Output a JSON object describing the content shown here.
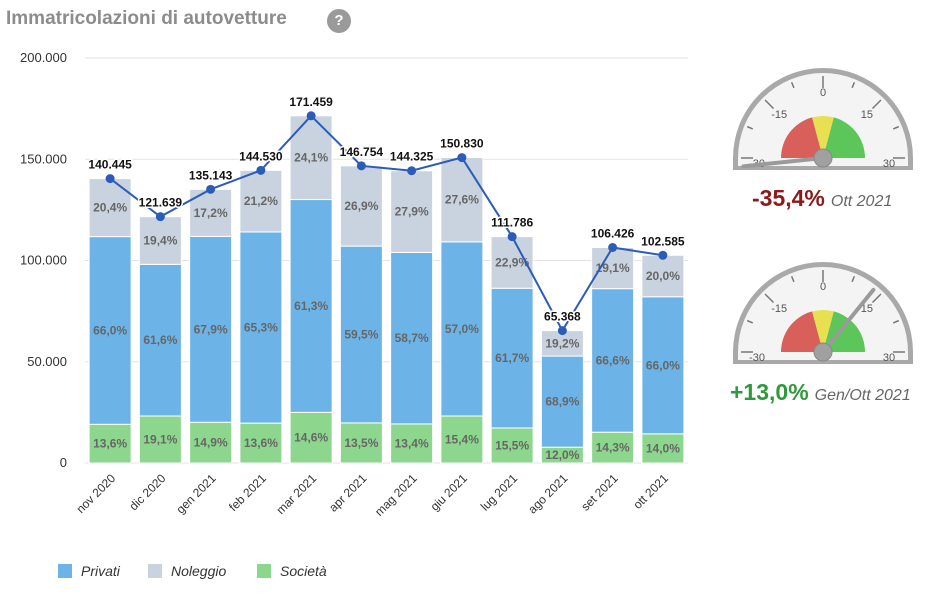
{
  "header": {
    "title": "Immatricolazioni di autovetture",
    "help_label": "?"
  },
  "chart_data": {
    "type": "bar",
    "stacked": true,
    "categories": [
      "nov 2020",
      "dic 2020",
      "gen 2021",
      "feb 2021",
      "mar 2021",
      "apr 2021",
      "mag 2021",
      "giu 2021",
      "lug 2021",
      "ago 2021",
      "set 2021",
      "ott 2021"
    ],
    "ylim": [
      0,
      200000
    ],
    "yticks": [
      "0",
      "50.000",
      "100.000",
      "150.000",
      "200.000"
    ],
    "ytick_values": [
      0,
      50000,
      100000,
      150000,
      200000
    ],
    "grid": true,
    "series": [
      {
        "name": "Società",
        "color": "#8dd68d",
        "values": [
          19100,
          23200,
          20100,
          19700,
          25000,
          19800,
          19300,
          23200,
          17300,
          7800,
          15200,
          14400
        ],
        "labels": [
          "13,6%",
          "19,1%",
          "14,9%",
          "13,6%",
          "14,6%",
          "13,5%",
          "13,4%",
          "15,4%",
          "15,5%",
          "12,0%",
          "14,3%",
          "14,0%"
        ]
      },
      {
        "name": "Privati",
        "color": "#6cb4e8",
        "values": [
          92700,
          74900,
          91800,
          94400,
          105100,
          87300,
          84700,
          86000,
          69000,
          45000,
          70900,
          67700
        ],
        "labels": [
          "66,0%",
          "61,6%",
          "67,9%",
          "65,3%",
          "61,3%",
          "59,5%",
          "58,7%",
          "57,0%",
          "61,7%",
          "68,9%",
          "66,6%",
          "66,0%"
        ]
      },
      {
        "name": "Noleggio",
        "color": "#c9d3df",
        "values": [
          28645,
          23539,
          23243,
          30430,
          41359,
          39654,
          40325,
          41630,
          25486,
          12568,
          20326,
          20485
        ],
        "labels": [
          "20,4%",
          "19,4%",
          "17,2%",
          "21,2%",
          "24,1%",
          "26,9%",
          "27,9%",
          "27,6%",
          "22,9%",
          "19,2%",
          "19,1%",
          "20,0%"
        ]
      }
    ],
    "total_line": {
      "color": "#2a5cb8",
      "values": [
        140445,
        121639,
        135143,
        144530,
        171459,
        146754,
        144325,
        150830,
        111786,
        65368,
        106426,
        102585
      ],
      "labels": [
        "140.445",
        "121.639",
        "135.143",
        "144.530",
        "171.459",
        "146.754",
        "144.325",
        "150.830",
        "111.786",
        "65.368",
        "106.426",
        "102.585"
      ]
    },
    "legend": [
      "Privati",
      "Noleggio",
      "Società"
    ],
    "legend_position": "bottom-left"
  },
  "gauges": [
    {
      "pct_label": "-35,4%",
      "period_label": "Ott 2021",
      "value": -35.4,
      "color": "#8b1a1a",
      "scale_labels": [
        "-30",
        "-15",
        "0",
        "15",
        "30"
      ]
    },
    {
      "pct_label": "+13,0%",
      "period_label": "Gen/Ott 2021",
      "value": 13.0,
      "color": "#2f9a3a",
      "scale_labels": [
        "-30",
        "-15",
        "0",
        "15",
        "30"
      ]
    }
  ]
}
